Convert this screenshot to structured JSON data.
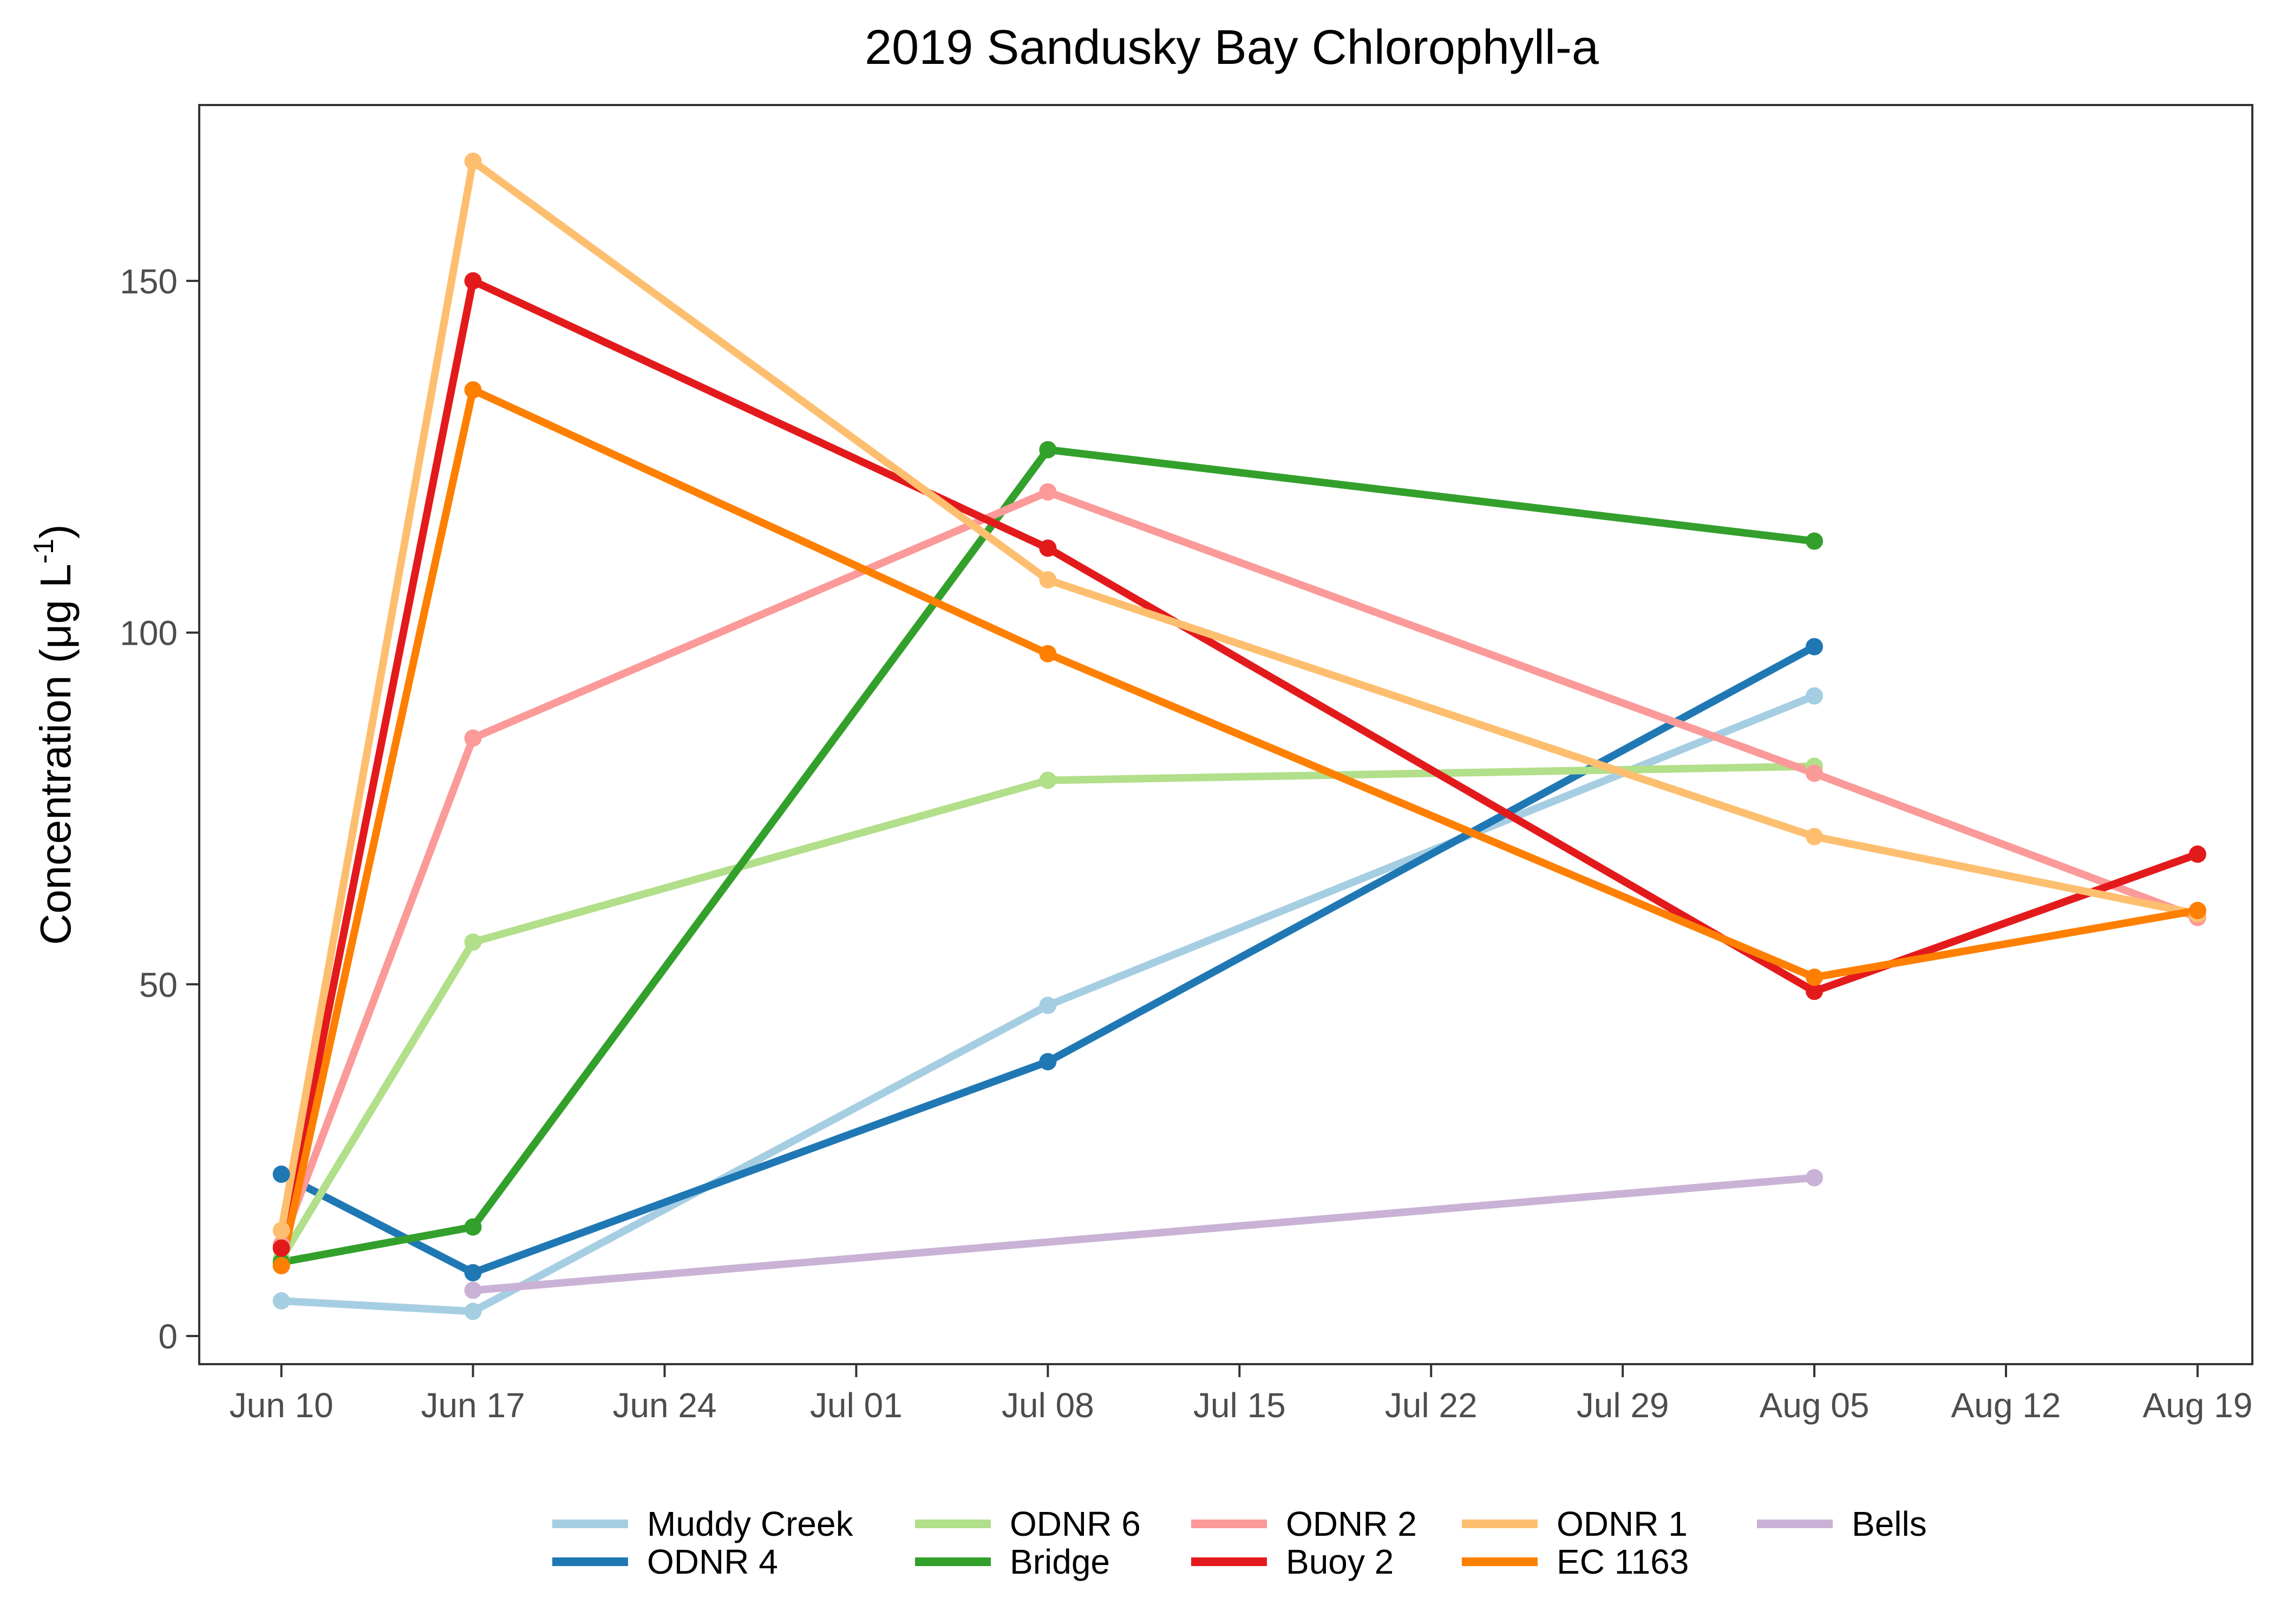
{
  "chart_data": {
    "type": "line",
    "title": "2019 Sandusky Bay Chlorophyll-a",
    "xlabel": "",
    "ylabel": "Concentration (μg L-1)",
    "ylabel_main": "Concentration (μg L",
    "ylabel_sup": "-1",
    "ylabel_close": ")",
    "x_tick_labels": [
      "Jun 10",
      "Jun 17",
      "Jun 24",
      "Jul 01",
      "Jul 08",
      "Jul 15",
      "Jul 22",
      "Jul 29",
      "Aug 05",
      "Aug 12",
      "Aug 19"
    ],
    "x_tick_dates": [
      "2019-06-10",
      "2019-06-17",
      "2019-06-24",
      "2019-07-01",
      "2019-07-08",
      "2019-07-15",
      "2019-07-22",
      "2019-07-29",
      "2019-08-05",
      "2019-08-12",
      "2019-08-19"
    ],
    "xlim": [
      "2019-06-07",
      "2019-08-21"
    ],
    "y_ticks": [
      0,
      50,
      100,
      150
    ],
    "ylim": [
      -4,
      175
    ],
    "grid": false,
    "legend_position": "bottom",
    "series": [
      {
        "name": "Muddy Creek",
        "color": "#a6cee3",
        "points": [
          [
            "2019-06-10",
            5
          ],
          [
            "2019-06-17",
            3.5
          ],
          [
            "2019-07-08",
            47
          ],
          [
            "2019-08-05",
            91
          ]
        ]
      },
      {
        "name": "ODNR 4",
        "color": "#1f78b4",
        "points": [
          [
            "2019-06-10",
            23
          ],
          [
            "2019-06-17",
            9
          ],
          [
            "2019-07-08",
            39
          ],
          [
            "2019-08-05",
            98
          ]
        ]
      },
      {
        "name": "ODNR 6",
        "color": "#b2df8a",
        "points": [
          [
            "2019-06-10",
            11
          ],
          [
            "2019-06-17",
            56
          ],
          [
            "2019-07-08",
            79
          ],
          [
            "2019-08-05",
            81
          ]
        ]
      },
      {
        "name": "Bridge",
        "color": "#33a02c",
        "points": [
          [
            "2019-06-10",
            10.5
          ],
          [
            "2019-06-17",
            15.5
          ],
          [
            "2019-07-08",
            126
          ],
          [
            "2019-08-05",
            113
          ]
        ]
      },
      {
        "name": "ODNR 2",
        "color": "#fb9a99",
        "points": [
          [
            "2019-06-10",
            13
          ],
          [
            "2019-06-17",
            85
          ],
          [
            "2019-07-08",
            120
          ],
          [
            "2019-08-05",
            80
          ],
          [
            "2019-08-19",
            59.5
          ]
        ]
      },
      {
        "name": "Buoy 2",
        "color": "#e31a1c",
        "points": [
          [
            "2019-06-10",
            12.5
          ],
          [
            "2019-06-17",
            150
          ],
          [
            "2019-07-08",
            112
          ],
          [
            "2019-08-05",
            49
          ],
          [
            "2019-08-19",
            68.5
          ]
        ]
      },
      {
        "name": "ODNR 1",
        "color": "#fdbf6f",
        "points": [
          [
            "2019-06-10",
            15
          ],
          [
            "2019-06-17",
            167
          ],
          [
            "2019-07-08",
            107.5
          ],
          [
            "2019-08-05",
            71
          ],
          [
            "2019-08-19",
            60
          ]
        ]
      },
      {
        "name": "EC 1163",
        "color": "#ff7f00",
        "points": [
          [
            "2019-06-10",
            10
          ],
          [
            "2019-06-17",
            134.5
          ],
          [
            "2019-07-08",
            97
          ],
          [
            "2019-08-05",
            51
          ],
          [
            "2019-08-19",
            60.5
          ]
        ]
      },
      {
        "name": "Bells",
        "color": "#cab2d6",
        "points": [
          [
            "2019-06-17",
            6.5
          ],
          [
            "2019-08-05",
            22.5
          ]
        ]
      }
    ]
  }
}
